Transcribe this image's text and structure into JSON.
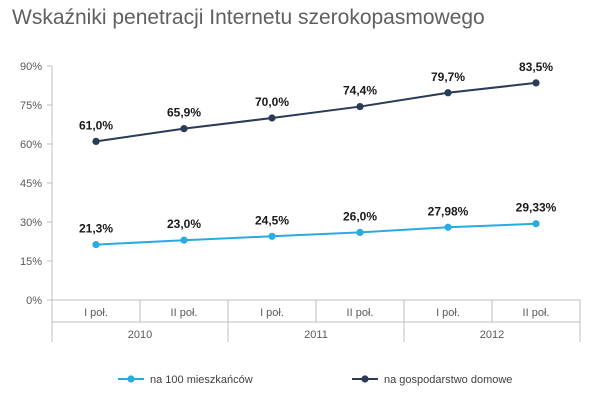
{
  "chart_data": {
    "type": "line",
    "title": "Wskaźniki penetracji Internetu szerokopasmowego",
    "categories": [
      "I poł.",
      "II poł.",
      "I poł.",
      "II poł.",
      "I poł.",
      "II poł."
    ],
    "years": [
      "2010",
      "2011",
      "2012"
    ],
    "ylim": [
      0,
      90
    ],
    "yticks": [
      "0%",
      "15%",
      "30%",
      "45%",
      "60%",
      "75%",
      "90%"
    ],
    "grid": false,
    "legend_position": "bottom",
    "series": [
      {
        "name": "na 100 mieszkańców",
        "values": [
          21.3,
          23.0,
          24.5,
          26.0,
          27.98,
          29.33
        ],
        "labels": [
          "21,3%",
          "23,0%",
          "24,5%",
          "26,0%",
          "27,98%",
          "29,33%"
        ],
        "color": "#29abe2"
      },
      {
        "name": "na gospodarstwo domowe",
        "values": [
          61.0,
          65.9,
          70.0,
          74.4,
          79.7,
          83.5
        ],
        "labels": [
          "61,0%",
          "65,9%",
          "70,0%",
          "74,4%",
          "79,7%",
          "83,5%"
        ],
        "color": "#2b3a57"
      }
    ]
  }
}
